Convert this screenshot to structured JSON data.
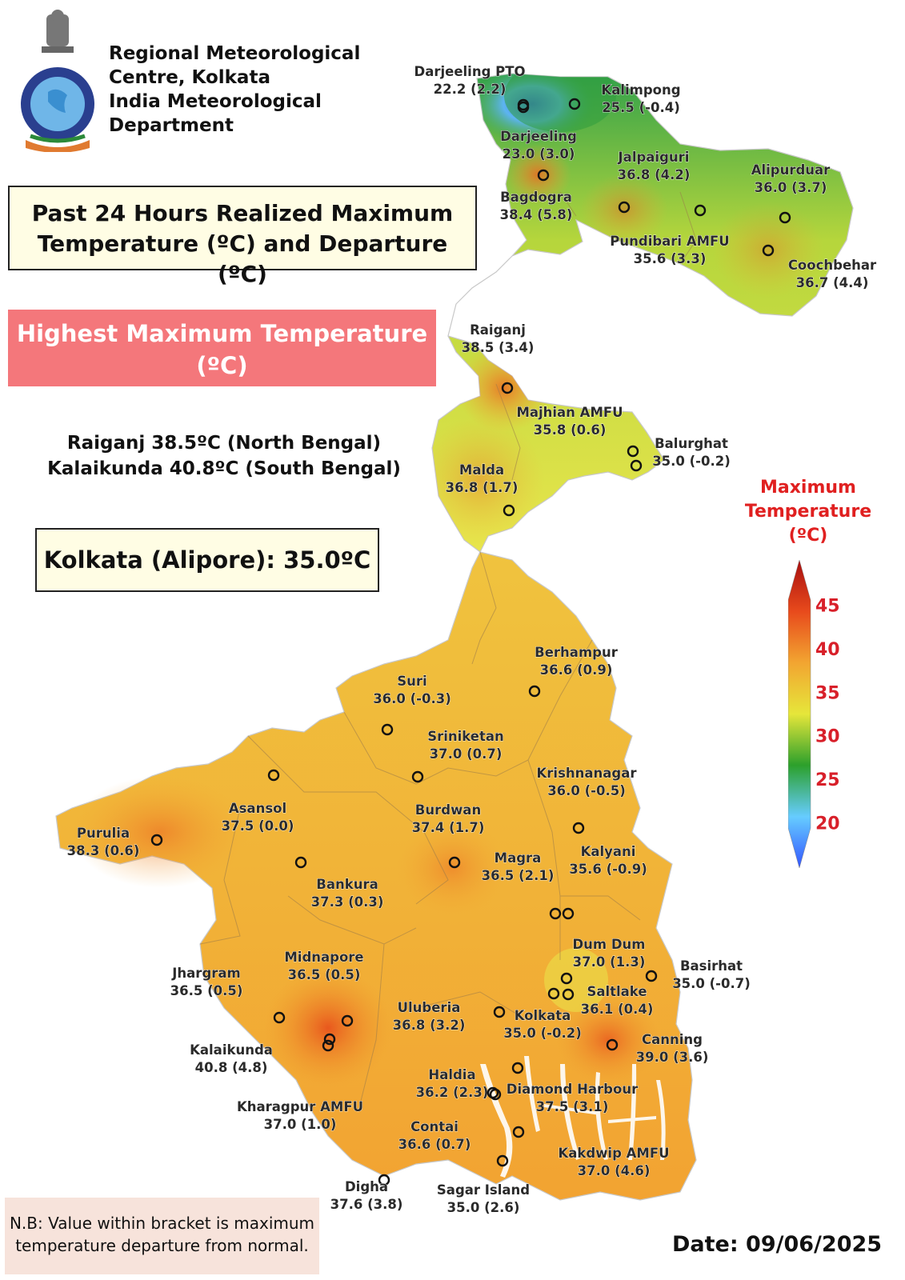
{
  "header": {
    "org_lines": [
      "Regional Meteorological",
      "Centre, Kolkata",
      "India Meteorological",
      "Department"
    ]
  },
  "title": [
    "Past 24 Hours Realized Maximum",
    "Temperature (ºC) and Departure (ºC)"
  ],
  "highest": {
    "heading": [
      "Highest Maximum Temperature",
      "(ºC)"
    ],
    "lines": [
      "Raiganj 38.5ºC (North Bengal)",
      "Kalaikunda 40.8ºC (South Bengal)"
    ]
  },
  "kolkata_alipore": "Kolkata (Alipore): 35.0ºC",
  "legend": {
    "title": [
      "Maximum",
      "Temperature",
      "(ºC)"
    ],
    "ticks": [
      "45",
      "40",
      "35",
      "30",
      "25",
      "20"
    ],
    "tick_values": [
      45,
      40,
      35,
      30,
      25,
      20
    ],
    "range": [
      18,
      47
    ],
    "colors": [
      "#3355ff",
      "#66ccff",
      "#2ca02c",
      "#e6e63a",
      "#f2a531",
      "#e84a1c",
      "#a80f0f"
    ]
  },
  "note": [
    "N.B: Value within bracket is maximum",
    "temperature departure from normal."
  ],
  "date": "Date: 09/06/2025",
  "stations": [
    {
      "name": "Darjeeling PTO",
      "value": "22.2 (2.2)"
    },
    {
      "name": "Kalimpong",
      "value": "25.5 (-0.4)"
    },
    {
      "name": "Darjeeling",
      "value": "23.0 (3.0)"
    },
    {
      "name": "Jalpaiguri",
      "value": "36.8 (4.2)"
    },
    {
      "name": "Alipurduar",
      "value": "36.0 (3.7)"
    },
    {
      "name": "Bagdogra",
      "value": "38.4 (5.8)"
    },
    {
      "name": "Pundibari AMFU",
      "value": "35.6 (3.3)"
    },
    {
      "name": "Coochbehar",
      "value": "36.7 (4.4)"
    },
    {
      "name": "Raiganj",
      "value": "38.5 (3.4)"
    },
    {
      "name": "Majhian AMFU",
      "value": "35.8 (0.6)"
    },
    {
      "name": "Balurghat",
      "value": "35.0 (-0.2)"
    },
    {
      "name": "Malda",
      "value": "36.8 (1.7)"
    },
    {
      "name": "Berhampur",
      "value": "36.6 (0.9)"
    },
    {
      "name": "Suri",
      "value": "36.0 (-0.3)"
    },
    {
      "name": "Sriniketan",
      "value": "37.0 (0.7)"
    },
    {
      "name": "Krishnanagar",
      "value": "36.0 (-0.5)"
    },
    {
      "name": "Asansol",
      "value": "37.5 (0.0)"
    },
    {
      "name": "Burdwan",
      "value": "37.4 (1.7)"
    },
    {
      "name": "Purulia",
      "value": "38.3 (0.6)"
    },
    {
      "name": "Kalyani",
      "value": "35.6 (-0.9)"
    },
    {
      "name": "Magra",
      "value": "36.5 (2.1)"
    },
    {
      "name": "Bankura",
      "value": "37.3 (0.3)"
    },
    {
      "name": "Dum Dum",
      "value": "37.0 (1.3)"
    },
    {
      "name": "Basirhat",
      "value": "35.0 (-0.7)"
    },
    {
      "name": "Midnapore",
      "value": "36.5 (0.5)"
    },
    {
      "name": "Jhargram",
      "value": "36.5 (0.5)"
    },
    {
      "name": "Saltlake",
      "value": "36.1 (0.4)"
    },
    {
      "name": "Uluberia",
      "value": "36.8 (3.2)"
    },
    {
      "name": "Kolkata",
      "value": "35.0 (-0.2)"
    },
    {
      "name": "Kalaikunda",
      "value": "40.8 (4.8)"
    },
    {
      "name": "Canning",
      "value": "39.0 (3.6)"
    },
    {
      "name": "Haldia",
      "value": "36.2 (2.3)"
    },
    {
      "name": "Diamond Harbour",
      "value": "37.5 (3.1)"
    },
    {
      "name": "Kharagpur AMFU",
      "value": "37.0 (1.0)"
    },
    {
      "name": "Contai",
      "value": "36.6 (0.7)"
    },
    {
      "name": "Kakdwip AMFU",
      "value": "37.0 (4.6)"
    },
    {
      "name": "Digha",
      "value": "37.6 (3.8)"
    },
    {
      "name": "Sagar Island",
      "value": "35.0 (2.6)"
    }
  ]
}
